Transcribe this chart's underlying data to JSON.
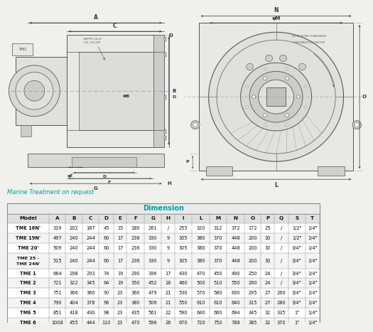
{
  "title": "Dimension",
  "marine_text": "Marine Treatment on request",
  "table_header": [
    "Model",
    "A",
    "B",
    "C",
    "D",
    "E",
    "F",
    "G",
    "H",
    "I",
    "L",
    "M",
    "N",
    "O",
    "P",
    "Q",
    "S",
    "T"
  ],
  "table_rows": [
    [
      "TME 16N'",
      "319",
      "202",
      "187",
      "45",
      "15",
      "180",
      "261",
      "/",
      "255",
      "320",
      "312",
      "372",
      "172",
      "25",
      "/",
      "1/2\"",
      "1/4\""
    ],
    [
      "TME 19N'",
      "497",
      "240",
      "244",
      "60",
      "17",
      "236",
      "330",
      "9",
      "305",
      "380",
      "370",
      "448",
      "200",
      "30",
      "/",
      "1/2\"",
      "1/4\""
    ],
    [
      "TME 20'",
      "509",
      "240",
      "244",
      "60",
      "17",
      "236",
      "330",
      "9",
      "305",
      "380",
      "370",
      "448",
      "200",
      "30",
      "/",
      "3/4\"",
      "1/4\""
    ],
    [
      "TME 25 -\nTME 24N'",
      "515",
      "240",
      "244",
      "60",
      "17",
      "236",
      "330",
      "9",
      "305",
      "380",
      "370",
      "448",
      "200",
      "30",
      "/",
      "3/4\"",
      "1/4\""
    ],
    [
      "TME 1",
      "664",
      "298",
      "293",
      "74",
      "19",
      "290",
      "396",
      "17",
      "430",
      "470",
      "450",
      "490",
      "250",
      "24",
      "/",
      "3/4\"",
      "1/4\""
    ],
    [
      "TME 2",
      "721",
      "322",
      "345",
      "64",
      "19",
      "350",
      "452",
      "18",
      "460",
      "500",
      "510",
      "550",
      "260",
      "24",
      "/",
      "3/4\"",
      "1/4\""
    ],
    [
      "TME 3",
      "751",
      "366",
      "360",
      "90",
      "23",
      "360",
      "479",
      "21",
      "530",
      "570",
      "580",
      "630",
      "295",
      "27",
      "260",
      "3/4\"",
      "1/4\""
    ],
    [
      "TME 4",
      "790",
      "404",
      "378",
      "96",
      "23",
      "380",
      "506",
      "21",
      "550",
      "610",
      "610",
      "640",
      "315",
      "27",
      "280",
      "3/4\"",
      "1/4\""
    ],
    [
      "TME 5",
      "851",
      "418",
      "430",
      "98",
      "23",
      "435",
      "561",
      "22",
      "590",
      "640",
      "660",
      "694",
      "345",
      "32",
      "335",
      "1\"",
      "1/4\""
    ],
    [
      "TME 6",
      "1008",
      "455",
      "444",
      "110",
      "23",
      "470",
      "596",
      "26",
      "670",
      "720",
      "750",
      "788",
      "385",
      "32",
      "370",
      "1\"",
      "1/4\""
    ]
  ],
  "bg_color": "#f0f0ec",
  "title_color": "#00a0a0",
  "marine_color": "#00a0a0",
  "line_color": "#555555",
  "dim_line_color": "#333333",
  "table_bg": "#ffffff",
  "header_bg": "#e0e0e0",
  "title_row_bg": "#e8e8e8",
  "alt_row_bg": "#f5f5f5"
}
